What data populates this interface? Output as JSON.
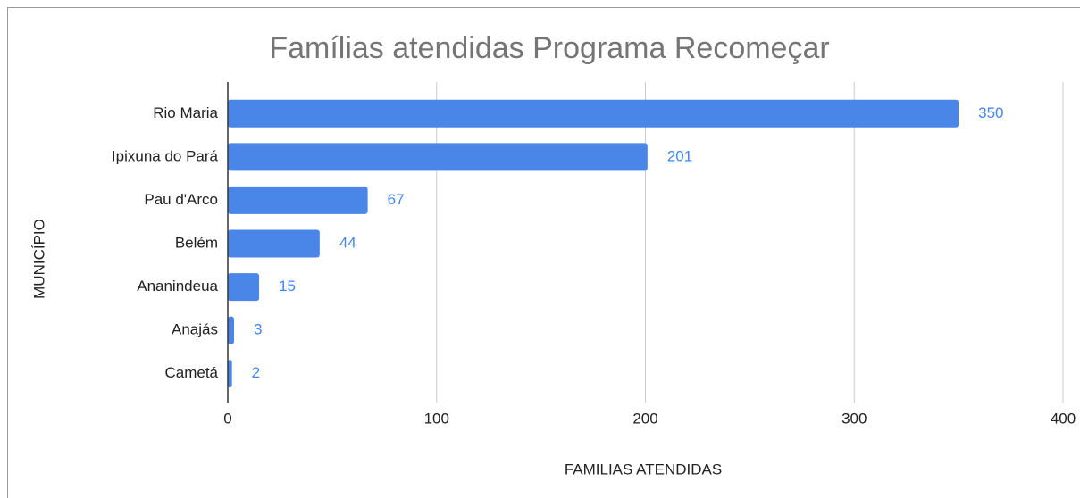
{
  "chart_data": {
    "type": "bar",
    "orientation": "horizontal",
    "title": "Famílias atendidas Programa Recomeçar",
    "x_label": "FAMILIAS ATENDIDAS",
    "y_label": "MUNICÍPIO",
    "categories": [
      "Rio Maria",
      "Ipixuna do Pará",
      "Pau d'Arco",
      "Belém",
      "Ananindeua",
      "Anajás",
      "Cametá"
    ],
    "values": [
      350,
      201,
      67,
      44,
      15,
      3,
      2
    ],
    "color": "#4a86e8",
    "label_color": "#4285f4",
    "xlim": [
      0,
      400
    ],
    "xticks": [
      0,
      100,
      200,
      300,
      400
    ],
    "grid": true
  }
}
